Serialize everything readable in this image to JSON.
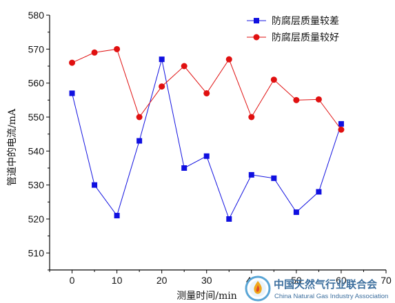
{
  "chart_data": {
    "type": "line",
    "title": "",
    "xlabel": "测量时间/min",
    "ylabel": "管道中的电流/mA",
    "xlim": [
      -5,
      70
    ],
    "ylim": [
      505,
      580
    ],
    "x_ticks": [
      0,
      10,
      20,
      30,
      40,
      50,
      60,
      70
    ],
    "y_ticks": [
      510,
      520,
      530,
      540,
      550,
      560,
      570,
      580
    ],
    "x_tick_labels": [
      "0",
      "10",
      "20",
      "30",
      "40",
      "50",
      "60",
      "70"
    ],
    "y_tick_labels": [
      "510",
      "520",
      "530",
      "540",
      "550",
      "560",
      "570",
      "580"
    ],
    "grid": false,
    "legend_position": "top-right",
    "series": [
      {
        "name": "防腐层质量较差",
        "color": "#1010e0",
        "marker": "square",
        "x": [
          0,
          5,
          10,
          15,
          20,
          25,
          30,
          35,
          40,
          45,
          50,
          55,
          60
        ],
        "y": [
          557,
          530,
          521,
          543,
          567,
          535,
          538.5,
          520,
          533,
          532,
          522,
          528,
          548
        ]
      },
      {
        "name": "防腐层质量较好",
        "color": "#e01010",
        "marker": "circle",
        "x": [
          0,
          5,
          10,
          15,
          20,
          25,
          30,
          35,
          40,
          45,
          50,
          55,
          60
        ],
        "y": [
          566,
          569,
          570,
          550,
          559,
          565,
          557,
          567,
          550,
          561,
          555,
          555.2,
          546.3
        ]
      }
    ]
  },
  "watermark": {
    "name_zh": "中国天然气行业联合会",
    "name_en": "China Natural Gas Industry Association"
  }
}
